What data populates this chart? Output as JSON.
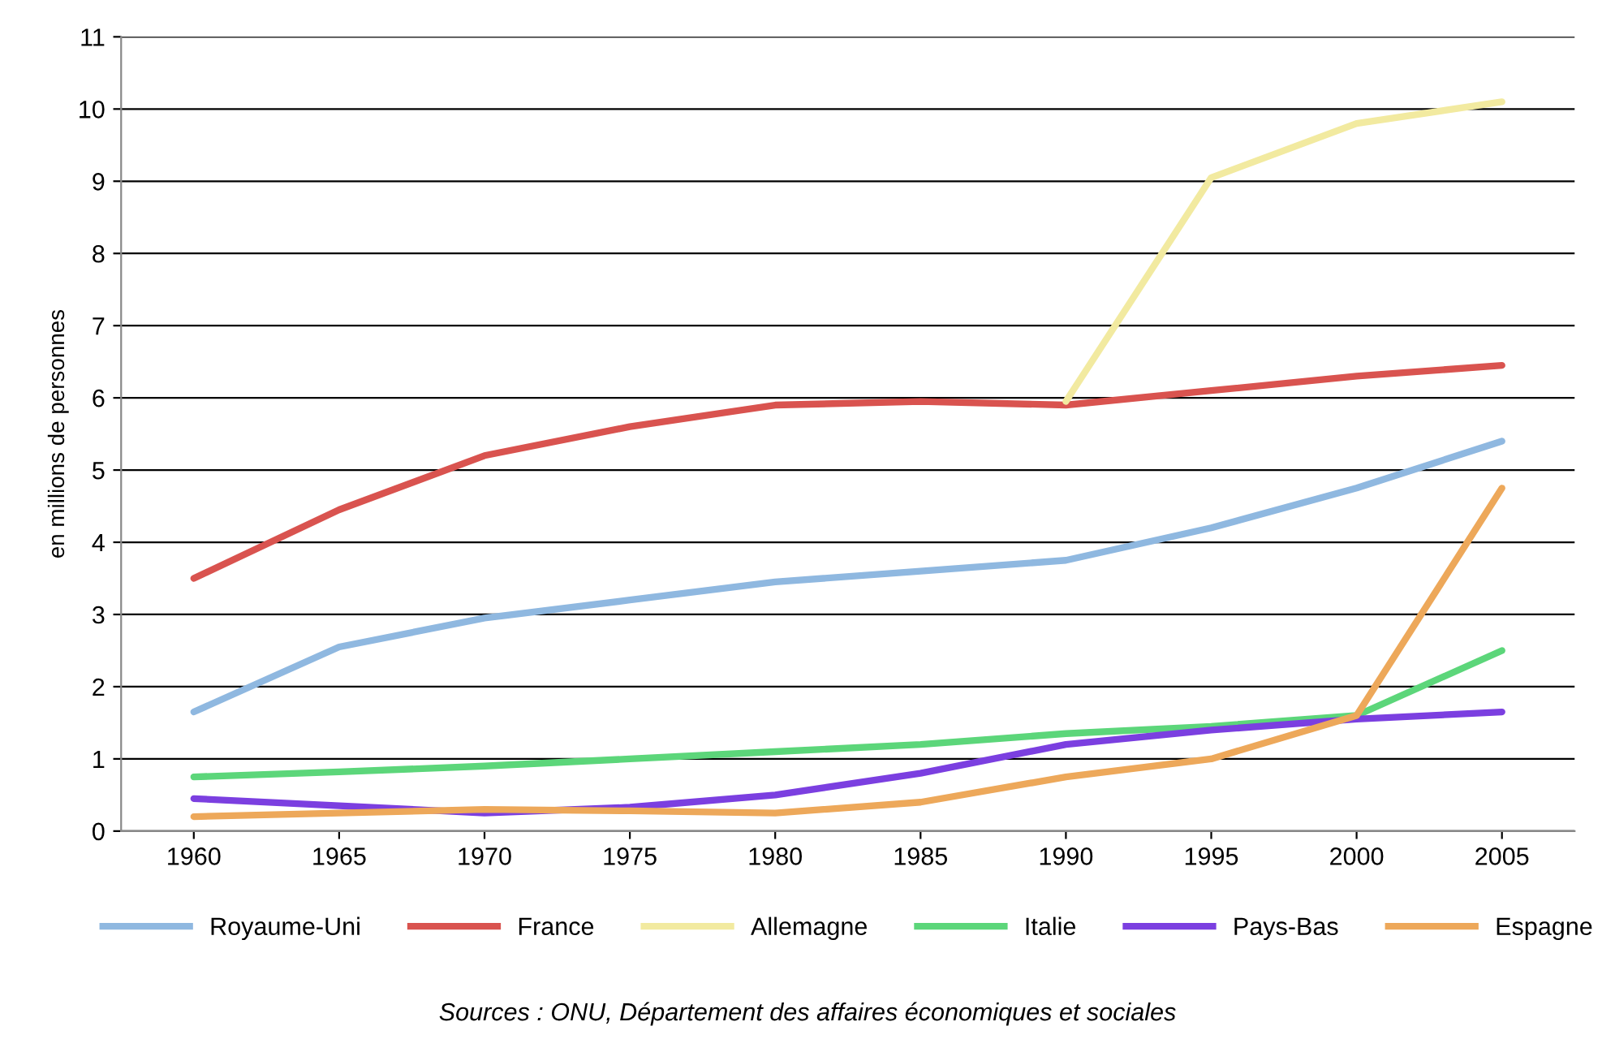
{
  "chart_data": {
    "type": "line",
    "ylabel": "en millions de personnes",
    "categories": [
      "1960",
      "1965",
      "1970",
      "1975",
      "1980",
      "1985",
      "1990",
      "1995",
      "2000",
      "2005"
    ],
    "ylim": [
      0,
      11
    ],
    "yticks": [
      0,
      1,
      2,
      3,
      4,
      5,
      6,
      7,
      8,
      9,
      10,
      11
    ],
    "grid": "y",
    "legend": "bottom",
    "marker": "none",
    "line_style": "solid",
    "series": [
      {
        "name": "Royaume-Uni",
        "color": "#8fb8e0",
        "values": [
          1.65,
          2.55,
          2.95,
          3.2,
          3.45,
          3.6,
          3.75,
          4.2,
          4.75,
          5.4
        ]
      },
      {
        "name": "France",
        "color": "#d9534f",
        "values": [
          3.5,
          4.45,
          5.2,
          5.6,
          5.9,
          5.95,
          5.9,
          6.1,
          6.3,
          6.45
        ]
      },
      {
        "name": "Allemagne",
        "color": "#f2eaa0",
        "values": [
          null,
          null,
          null,
          null,
          null,
          null,
          5.95,
          9.05,
          9.8,
          10.1
        ]
      },
      {
        "name": "Italie",
        "color": "#5cd67a",
        "values": [
          0.75,
          0.82,
          0.9,
          1.0,
          1.1,
          1.2,
          1.35,
          1.45,
          1.6,
          2.5
        ]
      },
      {
        "name": "Pays-Bas",
        "color": "#7b3fe0",
        "values": [
          0.45,
          0.35,
          0.25,
          0.33,
          0.5,
          0.8,
          1.2,
          1.4,
          1.55,
          1.65
        ]
      },
      {
        "name": "Espagne",
        "color": "#eda85a",
        "values": [
          0.2,
          0.25,
          0.3,
          0.28,
          0.25,
          0.4,
          0.75,
          1.0,
          1.6,
          4.75
        ]
      }
    ],
    "annotations": [
      "Sources : ONU, Département des affaires économiques et sociales"
    ]
  }
}
